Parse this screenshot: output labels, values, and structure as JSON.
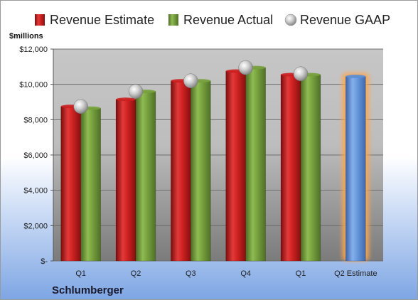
{
  "chart_data": {
    "type": "bar",
    "company": "Schlumberger",
    "unit_label": "$millions",
    "categories": [
      "Q1",
      "Q2",
      "Q3",
      "Q4",
      "Q1",
      "Q2 Estimate"
    ],
    "series": [
      {
        "name": "Revenue Estimate",
        "type": "bar",
        "color": "#cc1f1f",
        "values": [
          8750,
          9150,
          10200,
          10750,
          10550,
          null
        ]
      },
      {
        "name": "Revenue Actual",
        "type": "bar",
        "color": "#77a13c",
        "values": [
          8650,
          9600,
          10200,
          10950,
          10550,
          null
        ]
      },
      {
        "name": "Revenue GAAP",
        "type": "marker",
        "color": "#b8b8b8",
        "values": [
          8750,
          9600,
          10200,
          10950,
          10600,
          null
        ]
      },
      {
        "name": "",
        "type": "bar",
        "color": "#5b8fd6",
        "highlight": true,
        "values": [
          null,
          null,
          null,
          null,
          null,
          10450
        ]
      }
    ],
    "ylim": [
      0,
      12000
    ],
    "yticks": [
      0,
      2000,
      4000,
      6000,
      8000,
      10000,
      12000
    ],
    "ytick_labels": [
      "$-",
      "$2,000",
      "$4,000",
      "$6,000",
      "$8,000",
      "$10,000",
      "$12,000"
    ],
    "grid": true,
    "legend_position": "top"
  }
}
